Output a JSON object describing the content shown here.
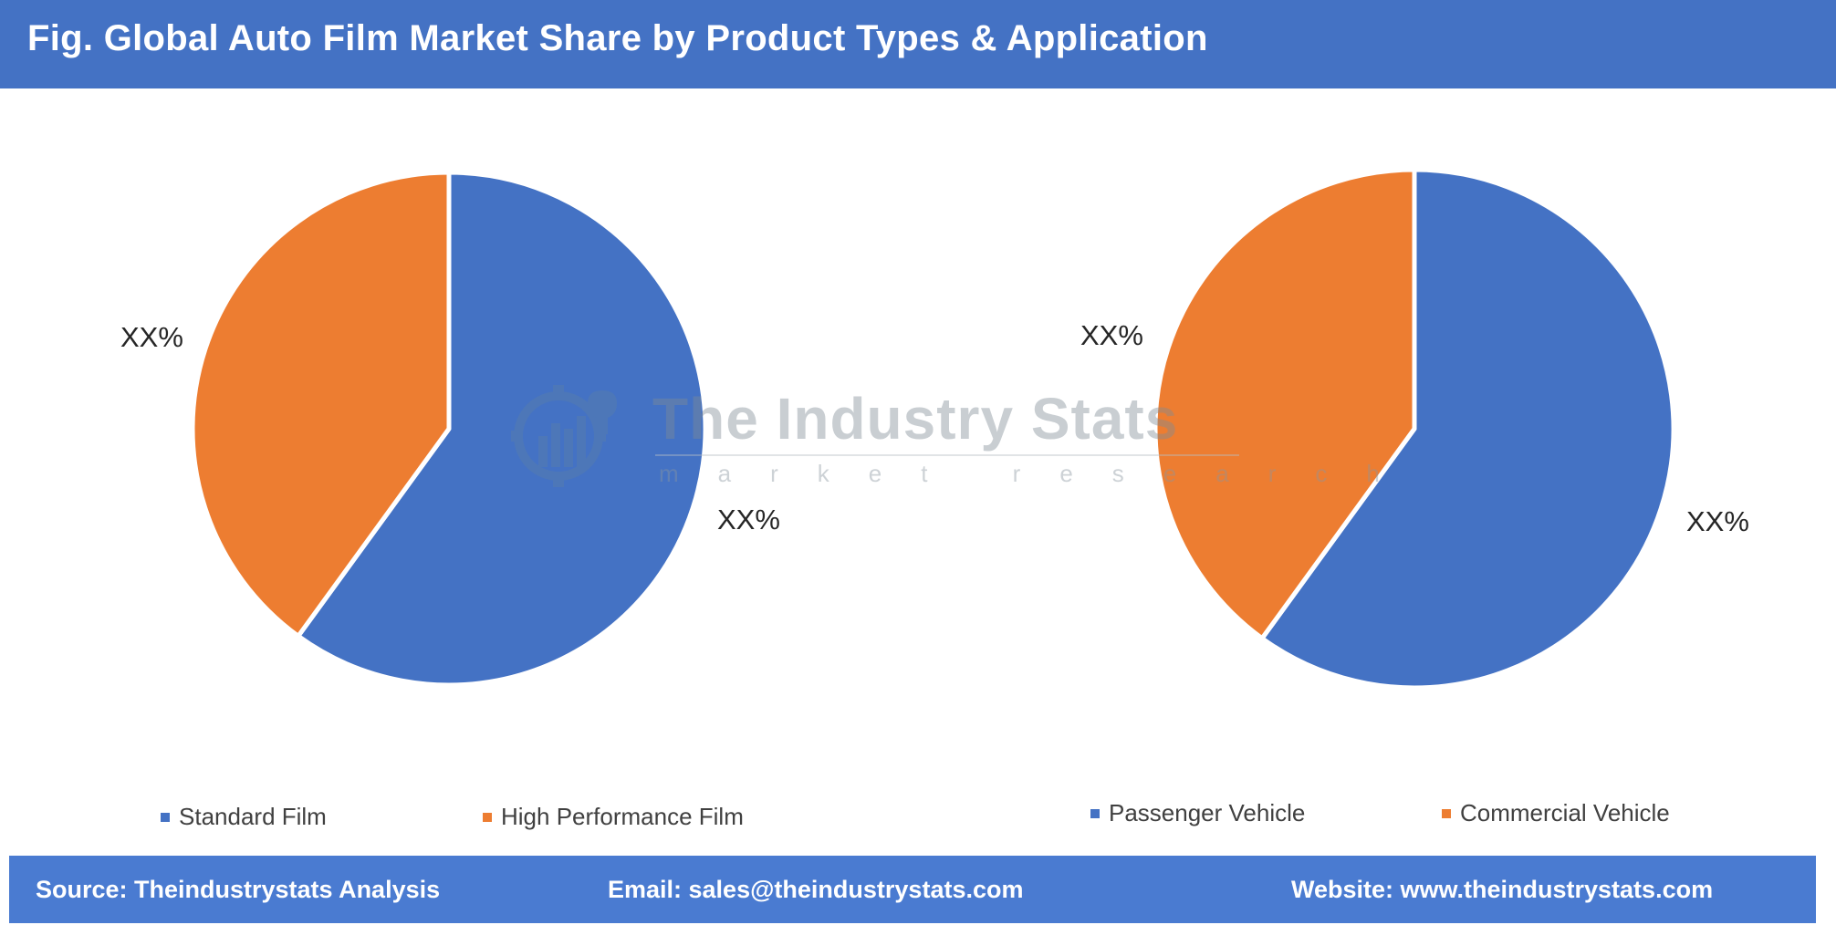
{
  "header": {
    "title": "Fig. Global Auto Film Market Share by Product Types & Application"
  },
  "watermark": {
    "title": "The Industry Stats",
    "subtitle": "market research"
  },
  "chart_data": [
    {
      "type": "pie",
      "title": "",
      "labels": [
        "Standard Film",
        "High Performance Film"
      ],
      "values": [
        60,
        40
      ],
      "colors": [
        "#4472c4",
        "#ed7d31"
      ],
      "data_labels": [
        "XX%",
        "XX%"
      ],
      "legend": "bottom"
    },
    {
      "type": "pie",
      "title": "",
      "labels": [
        "Passenger Vehicle",
        "Commercial Vehicle"
      ],
      "values": [
        60,
        40
      ],
      "colors": [
        "#4472c4",
        "#ed7d31"
      ],
      "data_labels": [
        "XX%",
        "XX%"
      ],
      "legend": "bottom"
    }
  ],
  "footer": {
    "source": "Source: Theindustrystats Analysis",
    "email": "Email: sales@theindustrystats.com",
    "website": "Website: www.theindustrystats.com"
  }
}
